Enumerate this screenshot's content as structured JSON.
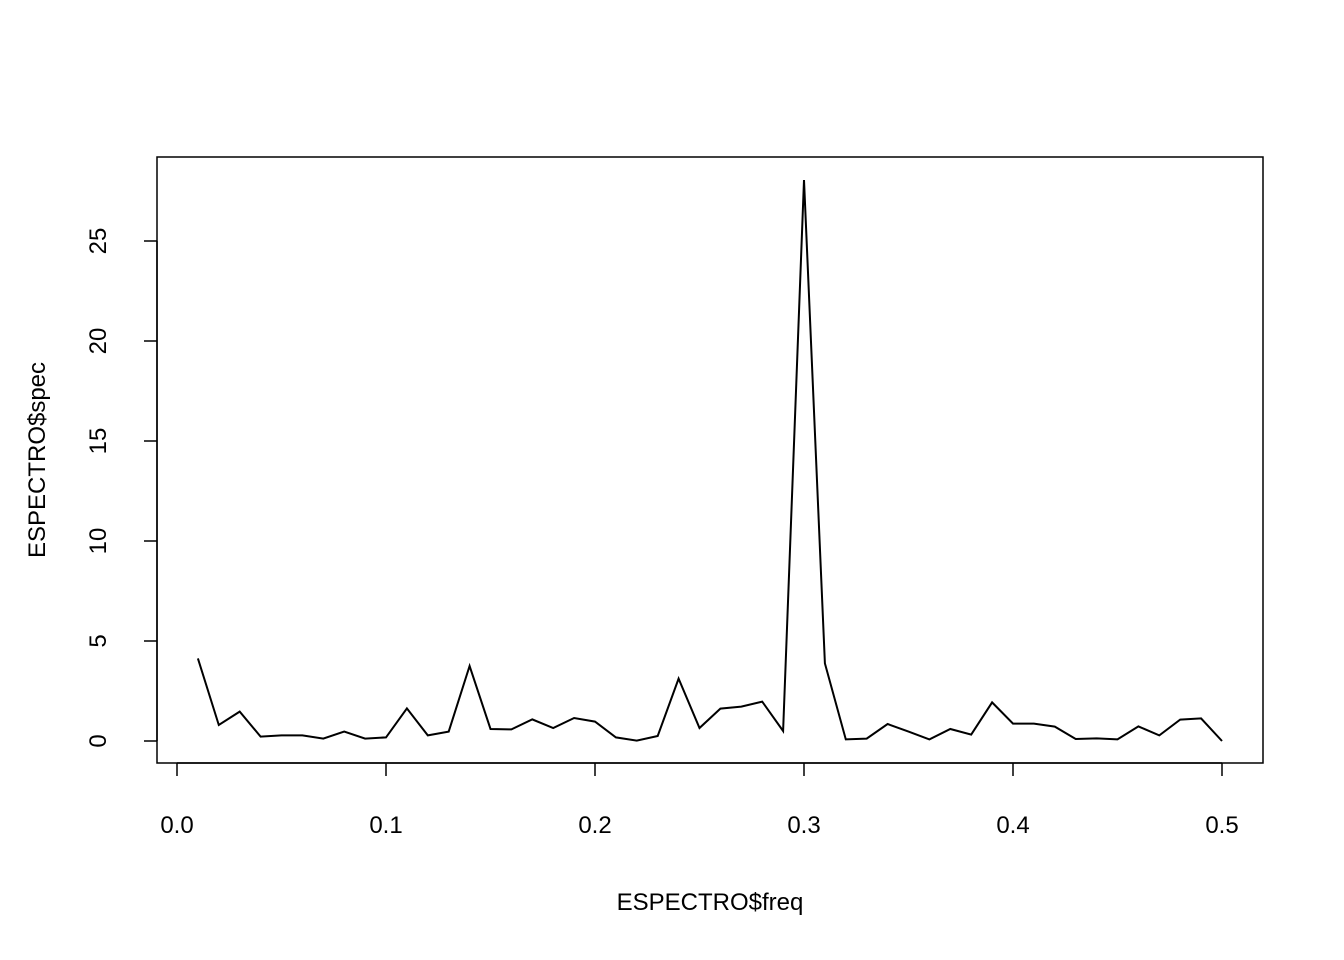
{
  "chart_data": {
    "type": "line",
    "title": "",
    "xlabel": "ESPECTRO$freq",
    "ylabel": "ESPECTRO$spec",
    "xlim": [
      0,
      0.5
    ],
    "ylim": [
      0,
      28.1
    ],
    "grid": false,
    "x_ticks": [
      "0.0",
      "0.1",
      "0.2",
      "0.3",
      "0.4",
      "0.5"
    ],
    "y_ticks": [
      "0",
      "5",
      "10",
      "15",
      "20",
      "25"
    ],
    "x": [
      0.01,
      0.02,
      0.03,
      0.04,
      0.05,
      0.06,
      0.07,
      0.08,
      0.09,
      0.1,
      0.11,
      0.12,
      0.13,
      0.14,
      0.15,
      0.16,
      0.17,
      0.18,
      0.19,
      0.2,
      0.21,
      0.22,
      0.23,
      0.24,
      0.25,
      0.26,
      0.27,
      0.28,
      0.29,
      0.3,
      0.31,
      0.32,
      0.33,
      0.34,
      0.35,
      0.36,
      0.37,
      0.38,
      0.39,
      0.4,
      0.41,
      0.42,
      0.43,
      0.44,
      0.45,
      0.46,
      0.47,
      0.48,
      0.49,
      0.5
    ],
    "y": [
      4.13,
      0.8,
      1.47,
      0.22,
      0.28,
      0.28,
      0.12,
      0.47,
      0.12,
      0.18,
      1.63,
      0.28,
      0.47,
      3.75,
      0.6,
      0.58,
      1.08,
      0.65,
      1.15,
      0.97,
      0.18,
      0.02,
      0.25,
      3.12,
      0.65,
      1.62,
      1.72,
      1.97,
      0.5,
      28.05,
      3.88,
      0.08,
      0.12,
      0.85,
      0.47,
      0.08,
      0.6,
      0.32,
      1.93,
      0.87,
      0.87,
      0.72,
      0.1,
      0.13,
      0.08,
      0.73,
      0.28,
      1.07,
      1.13,
      0.0
    ]
  }
}
